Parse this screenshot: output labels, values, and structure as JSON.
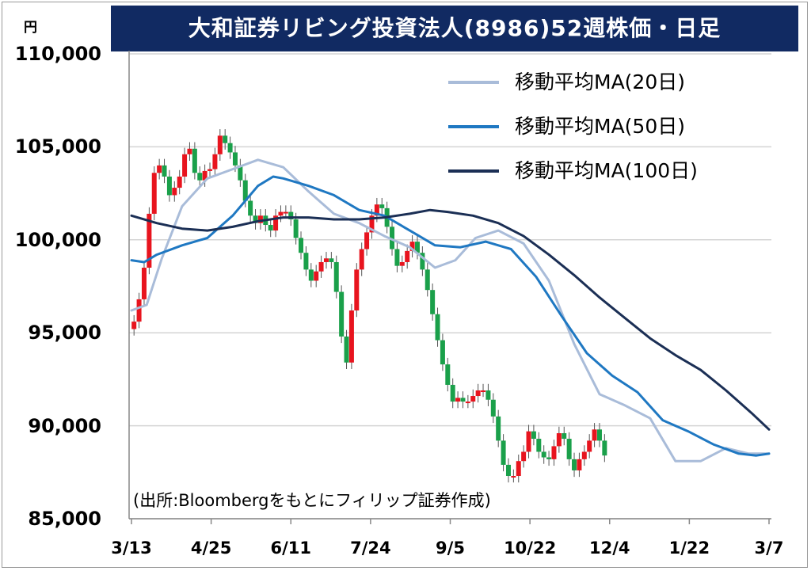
{
  "chart_data": {
    "type": "line",
    "subtype": "candlestick with moving averages",
    "title": "大和証券リビング投資法人(8986)52週株価・日足",
    "ylabel": "円",
    "ylim": [
      85000,
      110000
    ],
    "yticks": [
      "110,000",
      "105,000",
      "100,000",
      "95,000",
      "90,000",
      "85,000"
    ],
    "ytick_values": [
      110000,
      105000,
      100000,
      95000,
      90000,
      85000
    ],
    "xticks": [
      "3/13",
      "4/25",
      "6/11",
      "7/24",
      "9/5",
      "10/22",
      "12/4",
      "1/22",
      "3/7"
    ],
    "grid": "horizontal",
    "legend_position": "top-right",
    "candle_colors": {
      "up": "#e8141e",
      "down": "#1aa04a"
    },
    "series": [
      {
        "name": "移動平均MA(20日)",
        "color": "#a9bcd9",
        "x": [
          0,
          6,
          12,
          20,
          30,
          40,
          50,
          60,
          70,
          80,
          90,
          100,
          110,
          120,
          128,
          136,
          145,
          155,
          165,
          175,
          185,
          195,
          205,
          215,
          225,
          235,
          244,
          252
        ],
        "values": [
          96200,
          96500,
          99000,
          101800,
          103300,
          103800,
          104300,
          103900,
          102600,
          101400,
          100900,
          100200,
          99600,
          98500,
          98900,
          100100,
          100500,
          99800,
          97800,
          94400,
          91700,
          91100,
          90400,
          88100,
          88100,
          88800,
          88500,
          88500
        ]
      },
      {
        "name": "移動平均MA(50日)",
        "color": "#1f78c2",
        "x": [
          0,
          5,
          10,
          20,
          30,
          40,
          50,
          56,
          60,
          70,
          80,
          90,
          100,
          110,
          120,
          130,
          140,
          150,
          160,
          170,
          180,
          190,
          200,
          210,
          220,
          230,
          240,
          247,
          252
        ],
        "values": [
          98900,
          98800,
          99200,
          99700,
          100100,
          101300,
          102900,
          103400,
          103300,
          102900,
          102400,
          101600,
          101300,
          100500,
          99700,
          99600,
          99900,
          99500,
          98000,
          95900,
          93900,
          92700,
          91800,
          90300,
          89700,
          89000,
          88500,
          88400,
          88500
        ]
      },
      {
        "name": "移動平均MA(100日)",
        "color": "#1b2f55",
        "x": [
          0,
          10,
          20,
          30,
          40,
          50,
          60,
          70,
          80,
          90,
          100,
          110,
          118,
          125,
          135,
          145,
          155,
          165,
          175,
          185,
          195,
          205,
          215,
          225,
          235,
          245,
          252
        ],
        "values": [
          101300,
          100900,
          100600,
          100500,
          100700,
          101000,
          101200,
          101200,
          101100,
          101100,
          101200,
          101400,
          101600,
          101500,
          101300,
          100900,
          100200,
          99200,
          98100,
          96900,
          95800,
          94700,
          93800,
          93000,
          91900,
          90700,
          89800
        ]
      }
    ],
    "candles_close": {
      "x_step": 2,
      "values": [
        95600,
        96800,
        98500,
        101400,
        103600,
        104000,
        103400,
        102400,
        102800,
        103400,
        104600,
        104900,
        103600,
        103200,
        103700,
        103800,
        104600,
        105600,
        105200,
        104700,
        104000,
        103200,
        102100,
        101300,
        100900,
        101300,
        100800,
        100500,
        101300,
        101500,
        101500,
        101100,
        100100,
        99300,
        98400,
        97800,
        98300,
        98800,
        99000,
        98800,
        97200,
        94800,
        93400,
        96200,
        98400,
        99500,
        100400,
        101300,
        101900,
        101700,
        100700,
        99500,
        98600,
        98800,
        99400,
        99900,
        99300,
        98400,
        97300,
        96000,
        94600,
        93300,
        92200,
        91300,
        91500,
        91300,
        91300,
        91600,
        91900,
        91900,
        91400,
        90500,
        89200,
        87900,
        87300,
        87300,
        88100,
        88600,
        89700,
        89300,
        88600,
        88300,
        88200,
        88900,
        89600,
        89300,
        88200,
        87600,
        88200,
        88600,
        89200,
        89800,
        89200,
        88400
      ]
    }
  },
  "axes": {
    "unit_label": "円",
    "source_note": "(出所:Bloombergをもとにフィリップ証券作成)"
  }
}
